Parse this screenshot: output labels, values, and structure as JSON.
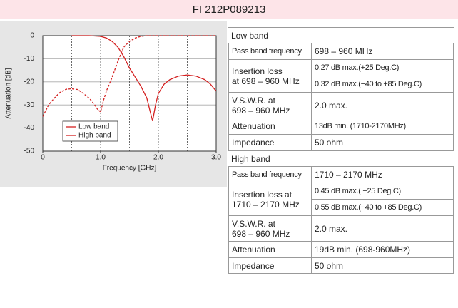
{
  "header": {
    "title": "FI 212P089213"
  },
  "chart_data": {
    "type": "line",
    "xlabel": "Frequency [GHz]",
    "ylabel": "Attenuation [dB]",
    "xlim": [
      0,
      3
    ],
    "ylim": [
      -50,
      0
    ],
    "xticks": [
      0,
      {
        "value": 1,
        "label": "1.0"
      },
      {
        "value": 2,
        "label": "2.0"
      },
      {
        "value": 3,
        "label": "3.0"
      }
    ],
    "yticks": [
      0,
      -10,
      -20,
      -30,
      -40,
      -50
    ],
    "xgrid": [
      0.5,
      1,
      1.5,
      2,
      2.5
    ],
    "legend": "lower left",
    "series": [
      {
        "name": "Low band",
        "color": "#d42020",
        "dash": false,
        "x": [
          0.5,
          0.8,
          1.0,
          1.1,
          1.2,
          1.3,
          1.4,
          1.5,
          1.6,
          1.7,
          1.8,
          1.85,
          1.9,
          1.95,
          2.0,
          2.1,
          2.2,
          2.35,
          2.5,
          2.65,
          2.8,
          2.9,
          3.0
        ],
        "y": [
          0,
          0,
          -0.3,
          -1,
          -2.5,
          -5,
          -9,
          -14,
          -18,
          -22,
          -27,
          -32,
          -37,
          -30,
          -25,
          -21,
          -19,
          -17.5,
          -17,
          -17.5,
          -19,
          -21,
          -24
        ]
      },
      {
        "name": "High band",
        "color": "#d42020",
        "dash": true,
        "x": [
          0,
          0.1,
          0.2,
          0.3,
          0.4,
          0.5,
          0.6,
          0.7,
          0.8,
          0.9,
          0.95,
          1.0,
          1.05,
          1.1,
          1.2,
          1.3,
          1.4,
          1.5,
          1.6,
          1.7,
          1.8,
          2.0,
          2.5,
          3.0
        ],
        "y": [
          -35,
          -30,
          -27,
          -24.5,
          -23.2,
          -23,
          -23.3,
          -25,
          -27,
          -30,
          -32,
          -33,
          -28,
          -24,
          -18,
          -11,
          -5,
          -2.5,
          -1,
          -0.3,
          0,
          0,
          0,
          0
        ]
      }
    ]
  },
  "table": {
    "sections": [
      {
        "title": "Low band",
        "rows": [
          {
            "label": "Pass band frequency",
            "values": [
              "698 – 960 MHz"
            ]
          },
          {
            "label": "Insertion loss\n at 698 – 960 MHz",
            "values": [
              "0.27 dB max.(+25 Deg.C)",
              "0.32 dB max.(−40 to +85 Deg.C)"
            ]
          },
          {
            "label": "V.S.W.R. at\n698 – 960 MHz",
            "values": [
              "2.0 max."
            ]
          },
          {
            "label": "Attenuation",
            "values": [
              "13dB min. (1710-2170MHz)"
            ]
          },
          {
            "label": "Impedance",
            "values": [
              "50 ohm"
            ]
          }
        ]
      },
      {
        "title": "High band",
        "rows": [
          {
            "label": "Pass band frequency",
            "values": [
              "1710 – 2170 MHz"
            ]
          },
          {
            "label": "Insertion loss at\n1710 – 2170 MHz",
            "values": [
              "0.45 dB max.( +25 Deg.C)",
              "0.55 dB max.(−40 to +85 Deg.C)"
            ]
          },
          {
            "label": "V.S.W.R. at\n698 – 960 MHz",
            "values": [
              "2.0 max."
            ]
          },
          {
            "label": "Attenuation",
            "values": [
              "19dB min. (698-960MHz)"
            ]
          },
          {
            "label": "Impedance",
            "values": [
              "50 ohm"
            ]
          }
        ]
      }
    ]
  }
}
